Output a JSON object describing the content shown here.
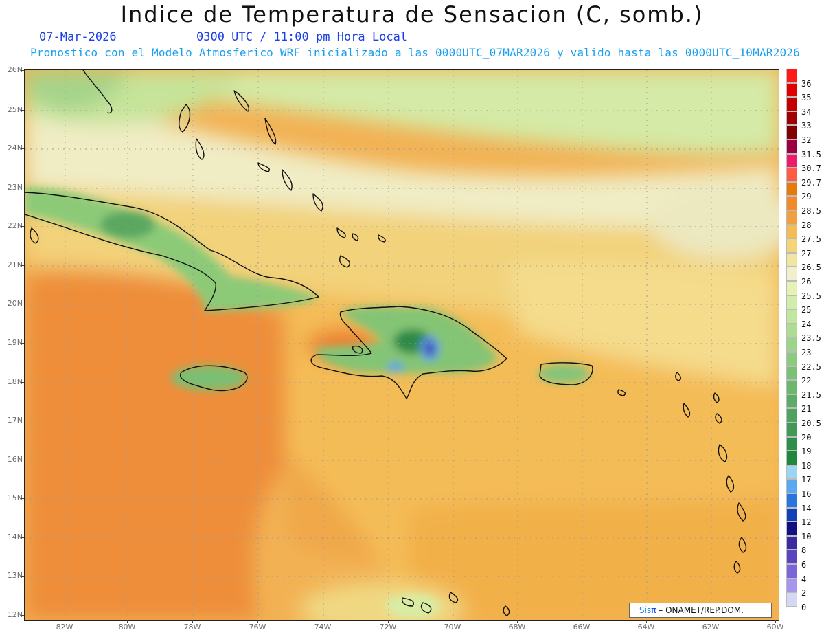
{
  "header": {
    "title": "Indice de Temperatura de Sensacion (C, somb.)",
    "date": "07-Mar-2026",
    "time": "0300 UTC / 11:00 pm Hora Local",
    "model_note": "Pronostico con el Modelo Atmosferico WRF inicializado a las 0000UTC_07MAR2026 y valido hasta las  0000UTC_10MAR2026"
  },
  "axes": {
    "lat_labels": [
      "26N",
      "25N",
      "24N",
      "23N",
      "22N",
      "21N",
      "20N",
      "19N",
      "18N",
      "17N",
      "16N",
      "15N",
      "14N",
      "13N",
      "12N"
    ],
    "lon_labels": [
      "82W",
      "80W",
      "78W",
      "76W",
      "74W",
      "72W",
      "70W",
      "68W",
      "66W",
      "64W",
      "62W",
      "60W"
    ]
  },
  "legend": {
    "labels": [
      "36",
      "35",
      "34",
      "33",
      "32",
      "31.5",
      "30.7",
      "29.7",
      "29",
      "28.5",
      "28",
      "27.5",
      "27",
      "26.5",
      "26",
      "25.5",
      "25",
      "24",
      "23.5",
      "23",
      "22.5",
      "22",
      "21.5",
      "21",
      "20.5",
      "20",
      "19",
      "18",
      "17",
      "16",
      "14",
      "12",
      "10",
      "8",
      "6",
      "4",
      "2",
      "0"
    ],
    "colors": [
      "#ff1a1a",
      "#e00000",
      "#c20000",
      "#a10000",
      "#820000",
      "#9c0040",
      "#ee1a6a",
      "#ff5a44",
      "#e87a0a",
      "#f08a2a",
      "#f0a040",
      "#f4bc54",
      "#f4d476",
      "#f0e6a2",
      "#f2f0cc",
      "#e6f2b4",
      "#d2ecaa",
      "#c0e6a0",
      "#aedc94",
      "#9cd48a",
      "#8cca80",
      "#7cc078",
      "#6cb66e",
      "#5cac66",
      "#4ea45e",
      "#409a56",
      "#2e9048",
      "#20883c",
      "#9cd4f4",
      "#5aa8f0",
      "#2a74e0",
      "#1240b8",
      "#101080",
      "#3a2aa0",
      "#5a44c2",
      "#7a66d8",
      "#a896ec",
      "#d6d6f6"
    ]
  },
  "credit": {
    "brand": "Sis",
    "pi": "π",
    "text": "– ONAMET/REP.DOM."
  }
}
